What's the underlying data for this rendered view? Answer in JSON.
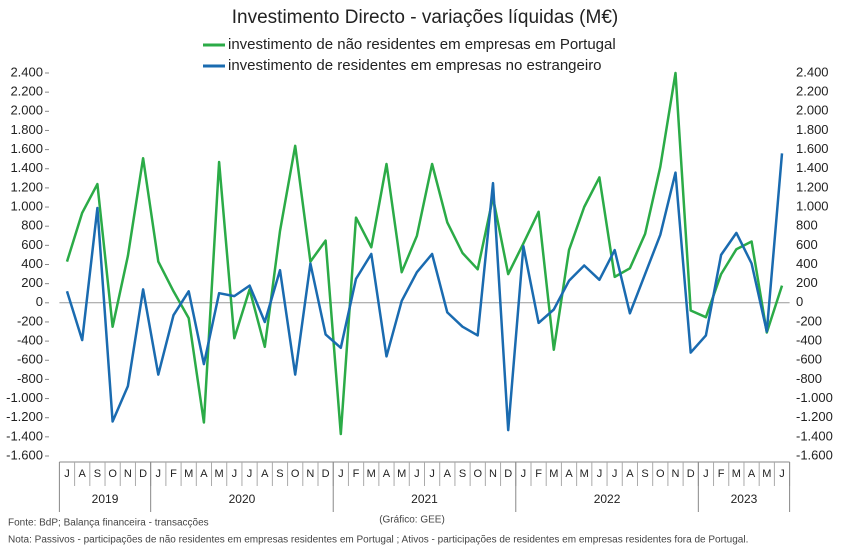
{
  "chart_data": {
    "type": "line",
    "title": "Investimento Directo - variações líquidas (M€)",
    "categories": [
      "J",
      "A",
      "S",
      "O",
      "N",
      "D",
      "J",
      "F",
      "M",
      "A",
      "M",
      "J",
      "J",
      "A",
      "S",
      "O",
      "N",
      "D",
      "J",
      "F",
      "M",
      "A",
      "M",
      "J",
      "J",
      "A",
      "S",
      "O",
      "N",
      "D",
      "J",
      "F",
      "M",
      "A",
      "M",
      "J",
      "J",
      "A",
      "S",
      "O",
      "N",
      "D",
      "J",
      "F",
      "M",
      "A",
      "M",
      "J"
    ],
    "years": [
      "2019",
      "2020",
      "2021",
      "2022",
      "2023"
    ],
    "series": [
      {
        "name": "investimento de não residentes em empresas em Portugal",
        "color": "#2bab47",
        "values": [
          430,
          940,
          1240,
          -250,
          490,
          1510,
          430,
          120,
          -160,
          -1250,
          1470,
          -370,
          140,
          -460,
          750,
          1640,
          430,
          650,
          -1370,
          890,
          580,
          1450,
          320,
          700,
          1450,
          840,
          520,
          350,
          1100,
          300,
          620,
          950,
          -490,
          550,
          1000,
          1310,
          270,
          360,
          720,
          1420,
          2400,
          -80,
          -150,
          300,
          560,
          640,
          -310,
          180
        ]
      },
      {
        "name": "investimento de residentes em empresas no estrangeiro",
        "color": "#1a6bb0",
        "values": [
          120,
          -390,
          990,
          -1240,
          -870,
          140,
          -750,
          -130,
          120,
          -640,
          100,
          70,
          180,
          -200,
          340,
          -750,
          410,
          -330,
          -470,
          250,
          510,
          -560,
          20,
          320,
          510,
          -100,
          -250,
          -340,
          1250,
          -1330,
          590,
          -210,
          -70,
          230,
          390,
          240,
          550,
          -110,
          300,
          710,
          1360,
          -520,
          -340,
          500,
          730,
          410,
          -300,
          1560
        ]
      }
    ],
    "ylim": [
      -1600,
      2400
    ],
    "yticks": [
      {
        "value": -1600,
        "label": "-1.600"
      },
      {
        "value": -1400,
        "label": "-1.400"
      },
      {
        "value": -1200,
        "label": "-1.200"
      },
      {
        "value": -1000,
        "label": "-1.000"
      },
      -800,
      -600,
      -400,
      -200,
      0,
      200,
      400,
      600,
      800,
      {
        "value": 1000,
        "label": "1.000"
      },
      {
        "value": 1200,
        "label": "1.200"
      },
      {
        "value": 1400,
        "label": "1.400"
      },
      {
        "value": 1600,
        "label": "1.600"
      },
      {
        "value": 1800,
        "label": "1.800"
      },
      {
        "value": 2000,
        "label": "2.000"
      },
      {
        "value": 2200,
        "label": "2.200"
      },
      {
        "value": 2400,
        "label": "2.400"
      }
    ],
    "y2lim": [
      -1600,
      2400
    ],
    "y2ticks": [
      {
        "value": -1600,
        "label": "-1.600"
      },
      {
        "value": -1400,
        "label": "-1.400"
      },
      {
        "value": -1200,
        "label": "-1.200"
      },
      {
        "value": -1000,
        "label": "-1.000"
      },
      -800,
      -600,
      -400,
      -200,
      0,
      200,
      400,
      600,
      800,
      {
        "value": 1000,
        "label": "1.000"
      },
      {
        "value": 1200,
        "label": "1.200"
      },
      {
        "value": 1400,
        "label": "1.400"
      },
      {
        "value": 1600,
        "label": "1.600"
      },
      {
        "value": 1800,
        "label": "1.800"
      },
      {
        "value": 2000,
        "label": "2.000"
      },
      {
        "value": 2200,
        "label": "2.200"
      },
      {
        "value": 2400,
        "label": "2.400"
      }
    ],
    "source": "Fonte: BdP; Balança financeira - transacções",
    "credit": "(Gráfico: GEE)",
    "note": "Nota: Passivos - participações de não residentes em empresas residentes em Portugal ; Ativos - participações de residentes em empresas residentes fora de Portugal."
  }
}
